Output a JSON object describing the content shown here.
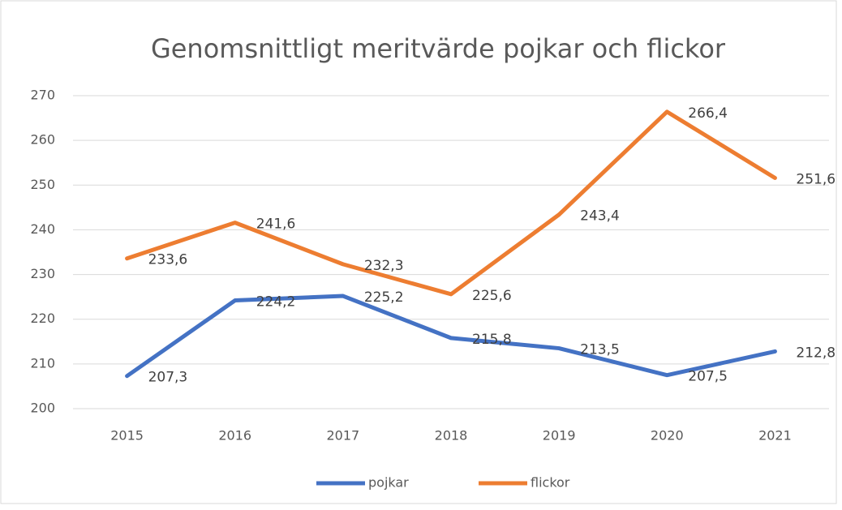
{
  "chart_data": {
    "type": "line",
    "title": "Genomsnittligt meritvärde pojkar och flickor",
    "categories": [
      "2015",
      "2016",
      "2017",
      "2018",
      "2019",
      "2020",
      "2021"
    ],
    "series": [
      {
        "name": "pojkar",
        "color": "#4472c4",
        "values": [
          207.3,
          224.2,
          225.2,
          215.8,
          213.5,
          207.5,
          212.8
        ],
        "value_labels": [
          "207,3",
          "224,2",
          "225,2",
          "215,8",
          "213,5",
          "207,5",
          "212,8"
        ]
      },
      {
        "name": "flickor",
        "color": "#ed7d31",
        "values": [
          233.6,
          241.6,
          232.3,
          225.6,
          243.4,
          266.4,
          251.6
        ],
        "value_labels": [
          "233,6",
          "241,6",
          "232,3",
          "225,6",
          "243,4",
          "266,4",
          "251,6"
        ]
      }
    ],
    "ylim": [
      200,
      270
    ],
    "yticks": [
      200,
      210,
      220,
      230,
      240,
      250,
      260,
      270
    ],
    "grid": true,
    "legend": "bottom"
  }
}
